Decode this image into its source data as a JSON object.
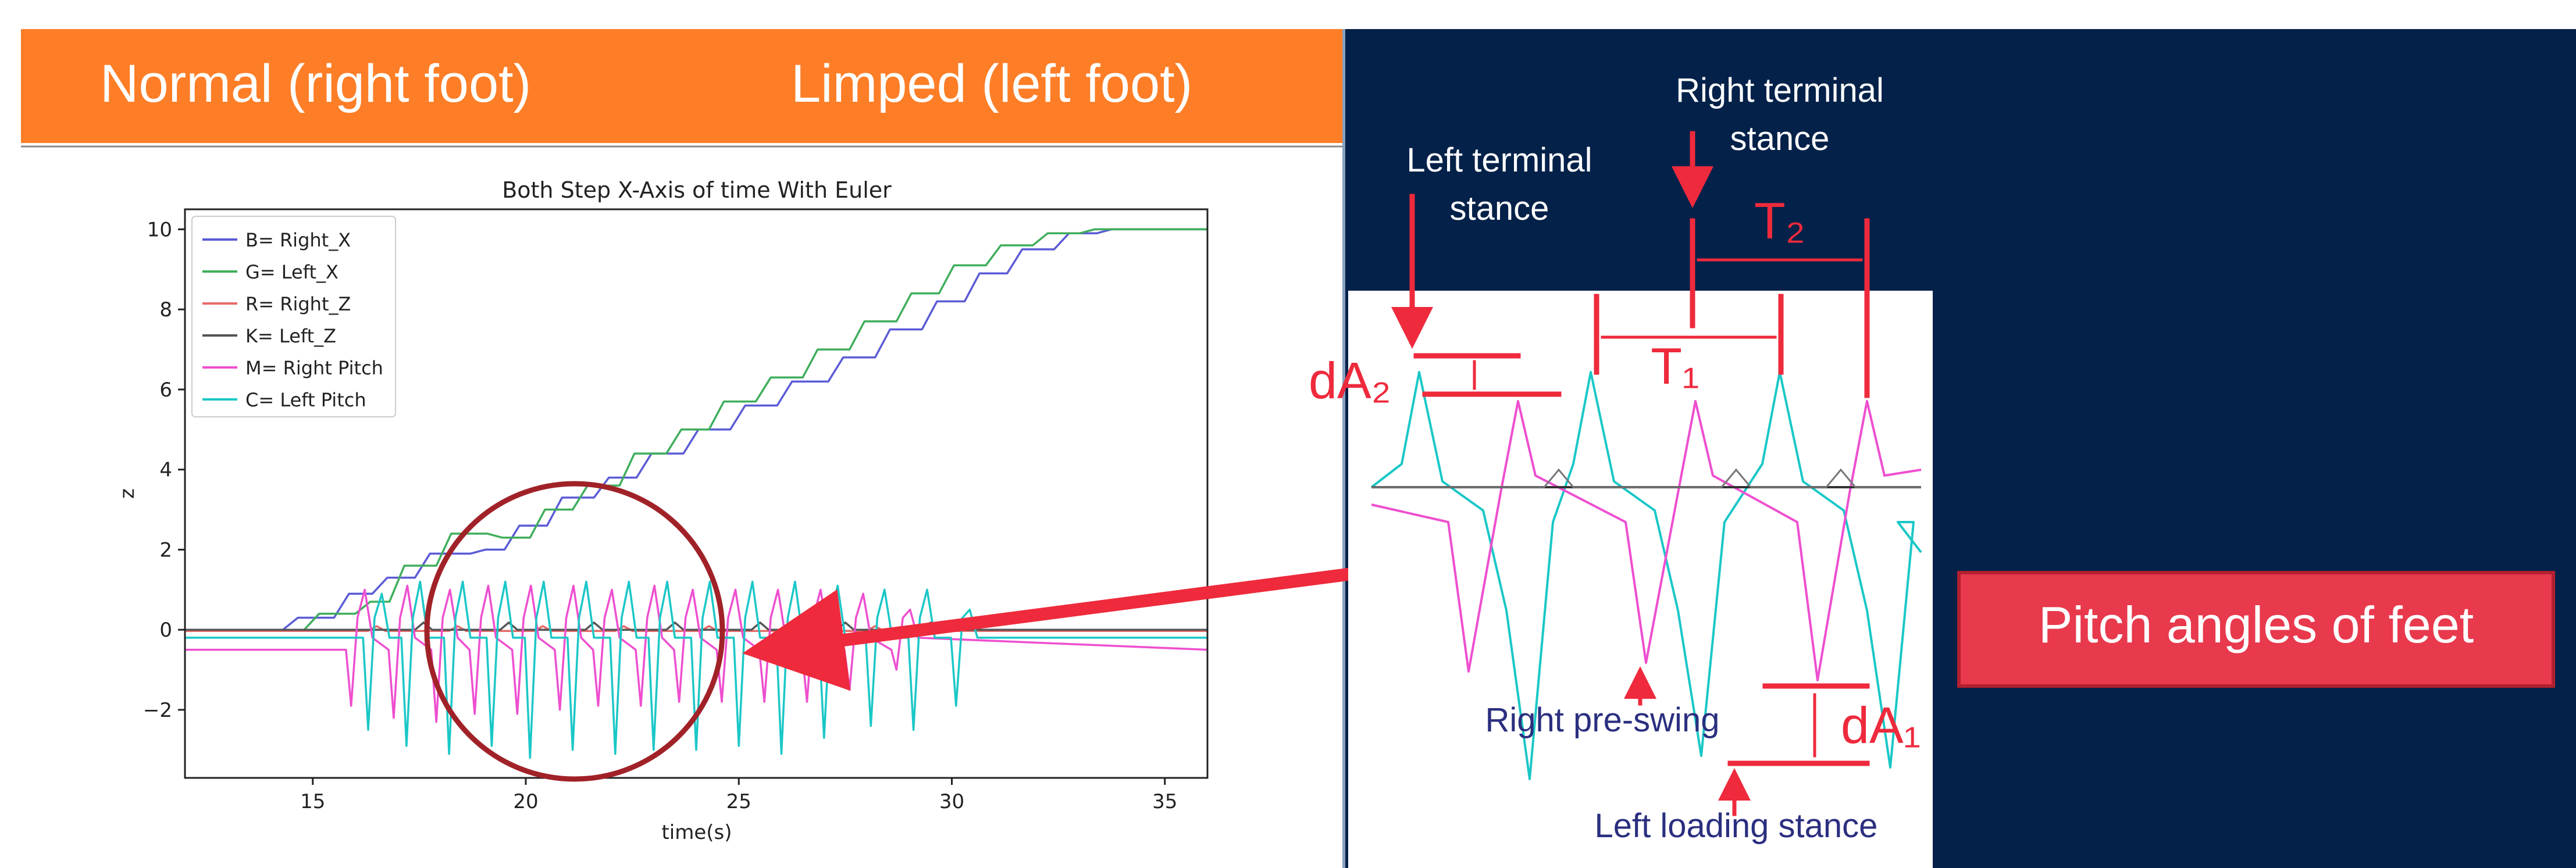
{
  "header": {
    "left_label": "Normal (right foot)",
    "right_label": "Limped (left foot)"
  },
  "chart_data": {
    "type": "line",
    "title": "Both Step X-Axis of time With Euler",
    "xlabel": "time(s)",
    "ylabel": "z",
    "xlim": [
      12,
      36
    ],
    "ylim": [
      -3.7,
      10.5
    ],
    "xticks": [
      15,
      20,
      25,
      30,
      35
    ],
    "yticks": [
      -2,
      0,
      2,
      4,
      6,
      8,
      10
    ],
    "grid": false,
    "legend": {
      "position": "top-left"
    },
    "series": [
      {
        "name": "B= Right_X",
        "color": "#5b5bd6",
        "kind": "right-x"
      },
      {
        "name": "G= Left_X",
        "color": "#3fae5c",
        "kind": "left-x"
      },
      {
        "name": "R= Right_Z",
        "color": "#e86a6a",
        "kind": "right-z"
      },
      {
        "name": "K= Left_Z",
        "color": "#555555",
        "kind": "left-z"
      },
      {
        "name": "M= Right Pitch",
        "color": "#ee4fd0",
        "kind": "right-pitch"
      },
      {
        "name": "C= Left Pitch",
        "color": "#1bc7c7",
        "kind": "left-pitch"
      }
    ],
    "highlight": {
      "shape": "circle",
      "center": [
        21.2,
        -0.5
      ],
      "color": "#a02228"
    }
  },
  "zoom_panel": {
    "labels": {
      "right_terminal": [
        "Right terminal",
        "stance"
      ],
      "left_terminal": [
        "Left terminal",
        "stance"
      ],
      "t1": "T₁",
      "t2": "T₂",
      "da1": "dA₁",
      "da2": "dA₂",
      "right_pre_swing": "Right pre-swing",
      "left_loading": "Left loading stance"
    }
  },
  "callout": {
    "label": "Pitch angles of feet"
  },
  "colors": {
    "orange": "#fd7e27",
    "navy": "#032149",
    "red": "#ee2a3c",
    "callout_bg": "#e8394d",
    "pre_swing_text": "#2b2f7f",
    "cyan": "#1bc7c7",
    "magenta": "#ee4fd0"
  }
}
